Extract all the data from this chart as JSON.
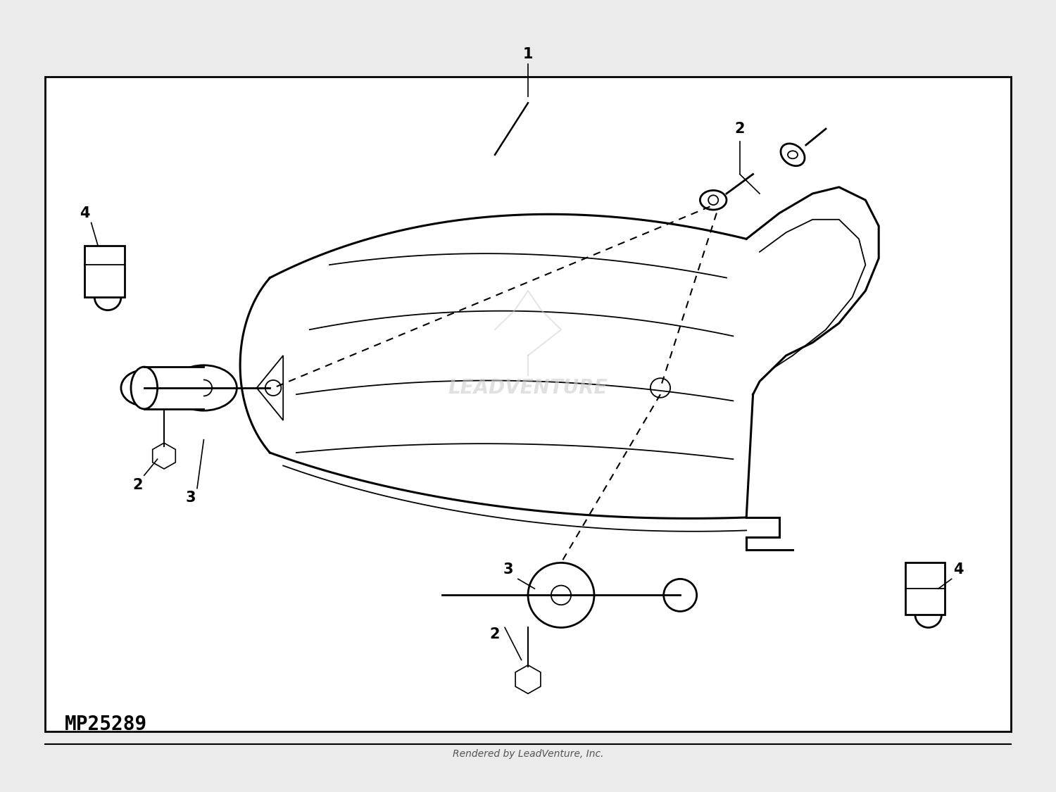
{
  "bg_color": "#ebebeb",
  "diagram_bg": "#ffffff",
  "line_color": "#000000",
  "watermark_color": "#cccccc",
  "mp_number": "MP25289",
  "footer_text": "Rendered by LeadVenture, Inc.",
  "border_color": "#000000",
  "lw_main": 2.0,
  "lw_thin": 1.3,
  "lw_deck": 2.2,
  "label_fontsize": 15,
  "mp_fontsize": 20,
  "footer_fontsize": 10,
  "watermark_fontsize": 20
}
